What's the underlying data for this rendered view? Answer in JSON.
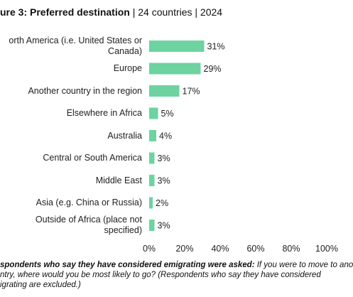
{
  "title": {
    "label": "ure 3: Preferred destination",
    "sub": "  |  24 countries  |  2024"
  },
  "chart_data": {
    "type": "bar",
    "orientation": "horizontal",
    "categories": [
      "orth America (i.e. United States or\nCanada)",
      "Europe",
      "Another country in the region",
      "Elsewhere in Africa",
      "Australia",
      "Central or South America",
      "Middle East",
      "Asia (e.g. China or Russia)",
      "Outside of Africa (place not\nspecified)"
    ],
    "values": [
      31,
      29,
      17,
      5,
      4,
      3,
      3,
      2,
      3
    ],
    "value_labels": [
      "31%",
      "29%",
      "17%",
      "5%",
      "4%",
      "3%",
      "3%",
      "2%",
      "3%"
    ],
    "xlim": [
      0,
      100
    ],
    "x_ticks": [
      "0%",
      "20%",
      "40%",
      "60%",
      "80%",
      "100%"
    ],
    "grid": false,
    "bar_color": "#6dd3a0"
  },
  "note": {
    "bold": "spondents who say they have considered emigrating were asked:",
    "text1": " If you were to move to ano",
    "line2": "ntry, where would you be most likely to go? (Respondents who say they have considered",
    "line3": "igrating are excluded.)"
  }
}
